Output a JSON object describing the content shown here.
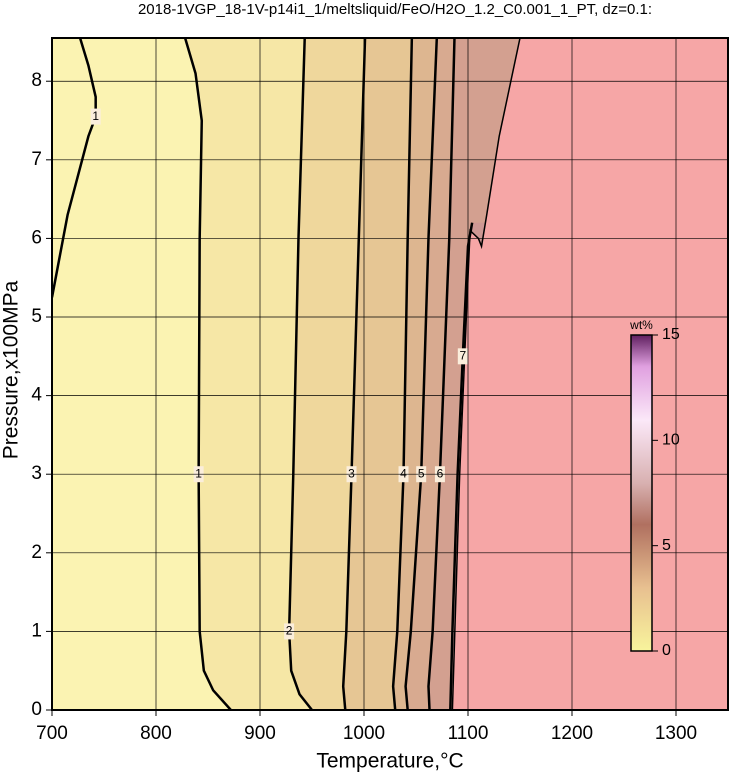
{
  "chart_data": {
    "type": "contour",
    "title": "2018-1VGP_18-1V-p14i1_1/meltsliquid/FeO/H2O_1.2_C0.001_1_PT, dz=0.1:",
    "x_label": "Temperature,°C",
    "y_label": "Pressure,x100MPa",
    "xlim": [
      700,
      1350
    ],
    "xticks": [
      700,
      800,
      900,
      1000,
      1100,
      1200,
      1300
    ],
    "ylim": [
      0,
      8.55
    ],
    "yticks": [
      0,
      1,
      2,
      3,
      4,
      5,
      6,
      7,
      8
    ],
    "grid": true,
    "background": "#fbf3b2",
    "contours": [
      {
        "level": 1,
        "fill": "#f6e7a6",
        "x": [
          872,
          855,
          846,
          842,
          841,
          842,
          844,
          838,
          828
        ],
        "y": [
          0,
          0.25,
          0.5,
          1,
          3,
          6,
          7.5,
          8.1,
          8.55
        ]
      },
      {
        "level": 1,
        "x": [
          700,
          715,
          735,
          742,
          742,
          735,
          727
        ],
        "y": [
          5.25,
          6.3,
          7.3,
          7.55,
          7.8,
          8.2,
          8.55
        ]
      },
      {
        "level": 2,
        "fill": "#efd79c",
        "x": [
          950,
          938,
          930,
          928,
          932,
          937,
          943
        ],
        "y": [
          0,
          0.2,
          0.5,
          1,
          3,
          6,
          8.55
        ]
      },
      {
        "level": 3,
        "fill": "#e6c694",
        "x": [
          982,
          980,
          983,
          988,
          995,
          1001
        ],
        "y": [
          0,
          0.3,
          1,
          3,
          6,
          8.55
        ]
      },
      {
        "level": 4,
        "fill": "#ddb690",
        "x": [
          1030,
          1028,
          1032,
          1038,
          1042,
          1046
        ],
        "y": [
          0,
          0.3,
          1,
          3,
          6,
          8.55
        ]
      },
      {
        "level": 5,
        "fill": "#d8aa90",
        "x": [
          1042,
          1040,
          1045,
          1055,
          1062,
          1070
        ],
        "y": [
          0,
          0.3,
          1,
          3,
          6,
          8.55
        ]
      },
      {
        "level": 6,
        "fill": "#d3a090",
        "x": [
          1063,
          1062,
          1066,
          1073,
          1082,
          1087
        ],
        "y": [
          0,
          0.3,
          1,
          3,
          6,
          8.55
        ]
      },
      {
        "level": 7,
        "fill": "#ce9894",
        "x": [
          1083,
          1085,
          1090,
          1095,
          1100,
          1104
        ],
        "y": [
          0,
          1,
          3,
          4.5,
          5.9,
          6.2
        ]
      }
    ],
    "region": {
      "color": "#f6a6a6",
      "x": [
        1085,
        1092,
        1100,
        1102,
        1110,
        1113,
        1118,
        1130,
        1150
      ],
      "y": [
        0,
        3,
        5.5,
        6.1,
        6,
        5.9,
        6.3,
        7.3,
        8.55
      ]
    },
    "colorbar": {
      "label": "wt%",
      "lim": [
        0,
        15
      ],
      "ticks": [
        0,
        5,
        10,
        15
      ]
    }
  }
}
